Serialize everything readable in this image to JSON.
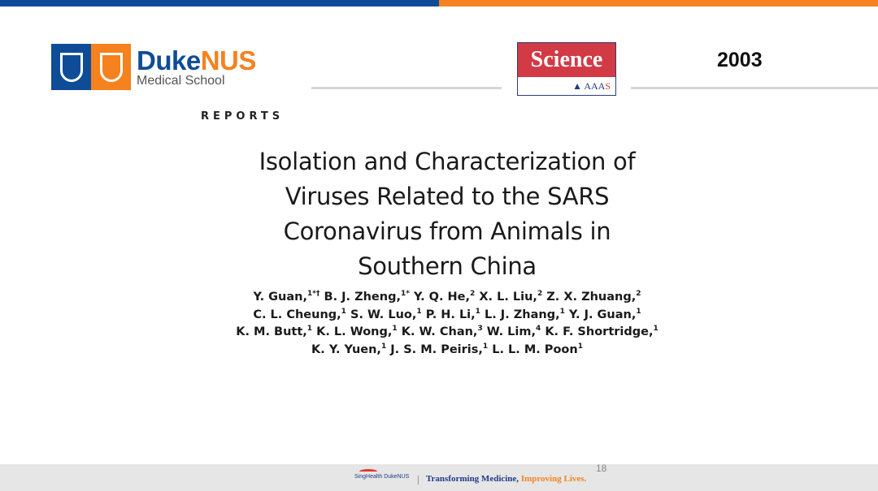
{
  "colors": {
    "duke_blue": "#0f4c97",
    "duke_orange": "#f5821f",
    "science_red": "#d23a45"
  },
  "header": {
    "duke_logo": {
      "name_part1": "Duke",
      "name_part2": "NUS",
      "subtitle": "Medical School"
    },
    "science_logo": {
      "title": "Science",
      "publisher_main": "AAA",
      "publisher_last": "S"
    },
    "year": "2003"
  },
  "article": {
    "section": "Reports",
    "title_lines": [
      "Isolation and Characterization of",
      "Viruses Related to the SARS",
      "Coronavirus from Animals in",
      "Southern China"
    ],
    "author_lines": [
      [
        {
          "name": "Y. Guan,",
          "sup": "1*†"
        },
        {
          "name": "B. J. Zheng,",
          "sup": "1*"
        },
        {
          "name": "Y. Q. He,",
          "sup": "2"
        },
        {
          "name": "X. L. Liu,",
          "sup": "2"
        },
        {
          "name": "Z. X. Zhuang,",
          "sup": "2"
        }
      ],
      [
        {
          "name": "C. L. Cheung,",
          "sup": "1"
        },
        {
          "name": "S. W. Luo,",
          "sup": "1"
        },
        {
          "name": "P. H. Li,",
          "sup": "1"
        },
        {
          "name": "L. J. Zhang,",
          "sup": "1"
        },
        {
          "name": "Y. J. Guan,",
          "sup": "1"
        }
      ],
      [
        {
          "name": "K. M. Butt,",
          "sup": "1"
        },
        {
          "name": "K. L. Wong,",
          "sup": "1"
        },
        {
          "name": "K. W. Chan,",
          "sup": "3"
        },
        {
          "name": "W. Lim,",
          "sup": "4"
        },
        {
          "name": "K. F. Shortridge,",
          "sup": "1"
        }
      ],
      [
        {
          "name": "K. Y. Yuen,",
          "sup": "1"
        },
        {
          "name": "J. S. M. Peiris,",
          "sup": "1"
        },
        {
          "name": "L. L. M. Poon",
          "sup": "1"
        }
      ]
    ]
  },
  "footer": {
    "logo_text": "SingHealth DukeNUS",
    "tagline_part1": "Transforming Medicine, ",
    "tagline_part2": "Improving Lives.",
    "page_number": "18"
  }
}
